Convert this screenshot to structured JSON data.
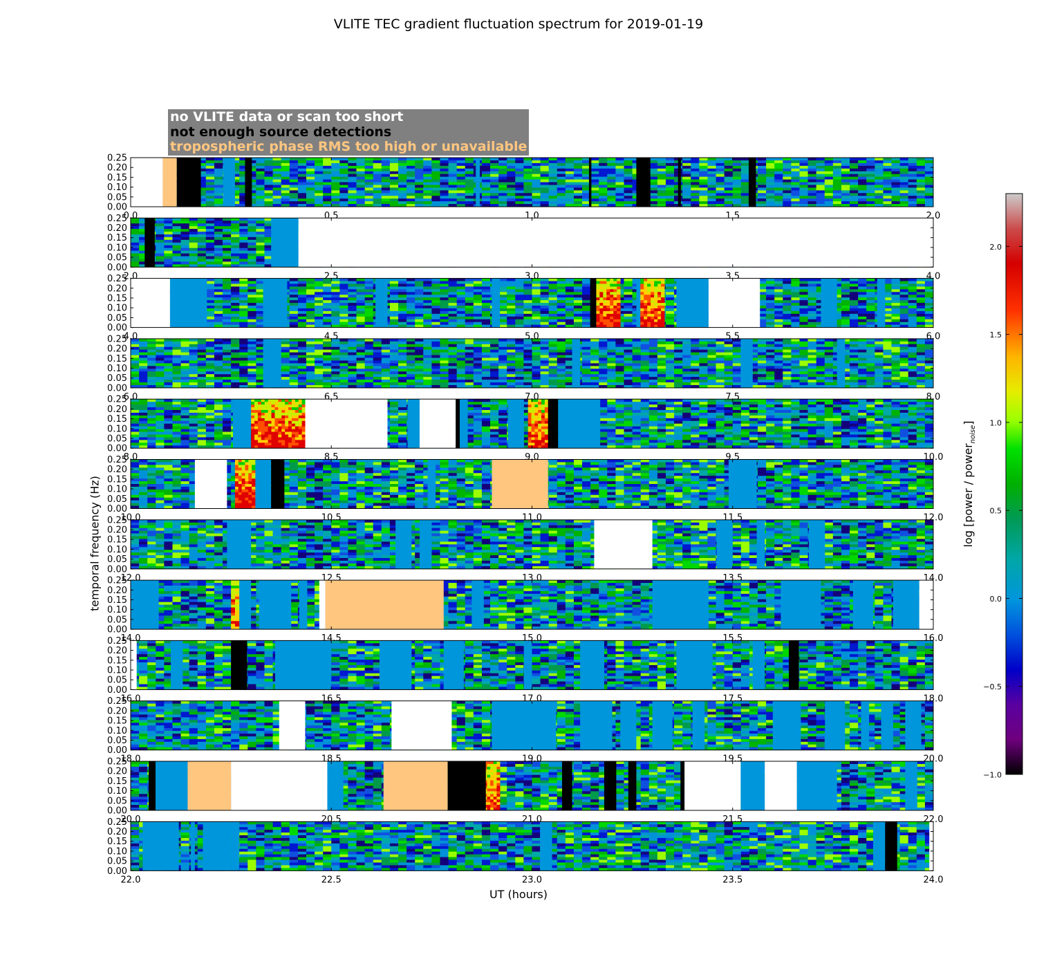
{
  "chart_data": {
    "type": "heatmap",
    "title": "VLITE TEC gradient fluctuation spectrum for 2019-01-19",
    "xlabel": "UT (hours)",
    "ylabel": "temporal frequency (Hz)",
    "colorbar": {
      "label": "log [power / power",
      "label_subscript": "noise",
      "label_close": "]",
      "range": [
        -1.0,
        2.3
      ],
      "ticks": [
        "−1.0",
        "−0.5",
        "0.0",
        "0.5",
        "1.0",
        "1.5",
        "2.0"
      ],
      "tick_values": [
        -1.0,
        -0.5,
        0.0,
        0.5,
        1.0,
        1.5,
        2.0
      ],
      "colormap": "nipy_spectral"
    },
    "flag_legend": [
      {
        "label": "no VLITE data or scan too short",
        "color": "#ffffff"
      },
      {
        "label": "not enough source detections",
        "color": "#000000"
      },
      {
        "label": "tropospheric phase RMS too high or unavailable",
        "color": "#ffc680"
      }
    ],
    "y_range": [
      0.0,
      0.25
    ],
    "y_ticks": [
      "0.00",
      "0.05",
      "0.10",
      "0.15",
      "0.20",
      "0.25"
    ],
    "panels": [
      {
        "x_range": [
          0.0,
          2.0
        ],
        "x_ticks": [
          "0.0",
          "0.5",
          "1.0",
          "1.5",
          "2.0"
        ],
        "white": [
          [
            0.0,
            0.08
          ]
        ],
        "black": [
          [
            0.115,
            0.175
          ],
          [
            0.285,
            0.302
          ],
          [
            1.142,
            1.148
          ],
          [
            1.26,
            1.295
          ],
          [
            1.364,
            1.371
          ],
          [
            1.54,
            1.558
          ]
        ],
        "peach": [
          [
            0.08,
            0.115
          ]
        ],
        "flat": [
          [
            0.23,
            0.26
          ],
          [
            0.86,
            0.87
          ]
        ],
        "hot": []
      },
      {
        "x_range": [
          2.0,
          4.0
        ],
        "x_ticks": [
          "2.0",
          "2.5",
          "3.0",
          "3.5",
          "4.0"
        ],
        "white": [
          [
            2.418,
            4.0
          ]
        ],
        "black": [
          [
            2.035,
            2.06
          ]
        ],
        "peach": [],
        "flat": [
          [
            2.35,
            2.418
          ]
        ],
        "hot": []
      },
      {
        "x_range": [
          4.0,
          6.0
        ],
        "x_ticks": [
          "4.0",
          "4.5",
          "5.0",
          "5.5",
          "6.0"
        ],
        "white": [
          [
            4.0,
            4.098
          ],
          [
            5.44,
            5.568
          ]
        ],
        "black": [
          [
            5.145,
            5.16
          ]
        ],
        "peach": [],
        "flat": [
          [
            4.098,
            4.19
          ],
          [
            4.33,
            4.39
          ],
          [
            4.61,
            4.64
          ],
          [
            4.9,
            4.92
          ],
          [
            5.26,
            5.3
          ],
          [
            5.36,
            5.44
          ],
          [
            5.72,
            5.76
          ],
          [
            5.86,
            5.88
          ]
        ],
        "hot": [
          [
            5.16,
            5.22,
            1.0
          ],
          [
            5.27,
            5.33,
            0.9
          ]
        ]
      },
      {
        "x_range": [
          6.0,
          8.0
        ],
        "x_ticks": [
          "6.0",
          "6.5",
          "7.0",
          "7.5",
          "8.0"
        ],
        "white": [],
        "black": [],
        "peach": [],
        "flat": [
          [
            6.33,
            6.375
          ],
          [
            7.1,
            7.12
          ],
          [
            7.52,
            7.55
          ],
          [
            7.76,
            7.78
          ]
        ],
        "hot": []
      },
      {
        "x_range": [
          8.0,
          10.0
        ],
        "x_ticks": [
          "8.0",
          "8.5",
          "9.0",
          "9.5",
          "10.0"
        ],
        "white": [
          [
            8.435,
            8.64
          ],
          [
            8.72,
            8.81
          ]
        ],
        "black": [
          [
            8.81,
            8.82
          ],
          [
            9.04,
            9.065
          ]
        ],
        "peach": [],
        "flat": [
          [
            8.255,
            8.3
          ],
          [
            8.69,
            8.72
          ],
          [
            8.82,
            8.84
          ],
          [
            8.94,
            8.98
          ],
          [
            9.065,
            9.17
          ]
        ],
        "hot": [
          [
            8.3,
            8.435,
            0.95
          ],
          [
            8.99,
            9.04,
            0.75
          ]
        ]
      },
      {
        "x_range": [
          10.0,
          12.0
        ],
        "x_ticks": [
          "10.0",
          "10.5",
          "11.0",
          "11.5",
          "12.0"
        ],
        "white": [
          [
            10.16,
            10.24
          ]
        ],
        "black": [
          [
            10.35,
            10.383
          ]
        ],
        "peach": [
          [
            10.9,
            11.04
          ]
        ],
        "flat": [
          [
            10.31,
            10.35
          ],
          [
            10.74,
            10.76
          ],
          [
            11.49,
            11.56
          ]
        ],
        "hot": [
          [
            10.26,
            10.31,
            1.15
          ]
        ]
      },
      {
        "x_range": [
          12.0,
          14.0
        ],
        "x_ticks": [
          "12.0",
          "12.5",
          "13.0",
          "13.5",
          "14.0"
        ],
        "white": [
          [
            13.155,
            13.3
          ]
        ],
        "black": [],
        "peach": [],
        "flat": [
          [
            12.24,
            12.3
          ],
          [
            12.66,
            12.7
          ],
          [
            12.72,
            12.75
          ],
          [
            13.46,
            13.5
          ],
          [
            13.56,
            13.58
          ],
          [
            13.69,
            13.73
          ]
        ],
        "hot": []
      },
      {
        "x_range": [
          14.0,
          16.0
        ],
        "x_ticks": [
          "14.0",
          "14.5",
          "15.0",
          "15.5",
          "16.0"
        ],
        "white": [
          [
            14.47,
            14.485
          ],
          [
            15.965,
            16.0
          ]
        ],
        "black": [],
        "peach": [
          [
            14.485,
            14.78
          ]
        ],
        "flat": [
          [
            14.0,
            14.07
          ],
          [
            14.27,
            14.3
          ],
          [
            14.32,
            14.4
          ],
          [
            14.42,
            14.44
          ],
          [
            14.85,
            14.88
          ],
          [
            15.3,
            15.44
          ],
          [
            15.62,
            15.72
          ],
          [
            15.8,
            15.85
          ],
          [
            15.9,
            15.965
          ]
        ],
        "hot": [
          [
            14.25,
            14.27,
            0.65
          ]
        ]
      },
      {
        "x_range": [
          16.0,
          18.0
        ],
        "x_ticks": [
          "16.0",
          "16.5",
          "17.0",
          "17.5",
          "18.0"
        ],
        "white": [
          [
            16.0,
            16.015
          ]
        ],
        "black": [
          [
            16.25,
            16.29
          ],
          [
            17.64,
            17.665
          ]
        ],
        "peach": [],
        "flat": [
          [
            16.1,
            16.13
          ],
          [
            16.36,
            16.5
          ],
          [
            16.62,
            16.7
          ],
          [
            16.78,
            16.83
          ],
          [
            16.98,
            17.0
          ],
          [
            17.12,
            17.18
          ],
          [
            17.36,
            17.45
          ],
          [
            17.55,
            17.58
          ]
        ],
        "hot": []
      },
      {
        "x_range": [
          18.0,
          20.0
        ],
        "x_ticks": [
          "18.0",
          "18.5",
          "19.0",
          "19.5",
          "20.0"
        ],
        "white": [
          [
            18.37,
            18.435
          ],
          [
            18.65,
            18.8
          ]
        ],
        "black": [],
        "peach": [],
        "flat": [
          [
            18.9,
            19.06
          ],
          [
            19.12,
            19.2
          ],
          [
            19.22,
            19.26
          ],
          [
            19.3,
            19.35
          ],
          [
            19.4,
            19.43
          ],
          [
            19.6,
            19.67
          ],
          [
            19.73,
            19.78
          ],
          [
            19.82,
            19.84
          ],
          [
            19.87,
            19.9
          ],
          [
            19.93,
            19.97
          ]
        ],
        "hot": []
      },
      {
        "x_range": [
          20.0,
          22.0
        ],
        "x_ticks": [
          "20.0",
          "20.5",
          "21.0",
          "21.5",
          "22.0"
        ],
        "white": [
          [
            20.25,
            20.49
          ],
          [
            21.38,
            21.52
          ],
          [
            21.58,
            21.66
          ]
        ],
        "black": [
          [
            20.045,
            20.062
          ],
          [
            20.79,
            20.885
          ],
          [
            21.075,
            21.1
          ],
          [
            21.18,
            21.21
          ],
          [
            21.24,
            21.26
          ],
          [
            21.37,
            21.38
          ]
        ],
        "peach": [
          [
            20.142,
            20.25
          ],
          [
            20.63,
            20.79
          ]
        ],
        "flat": [
          [
            20.062,
            20.142
          ],
          [
            20.49,
            20.53
          ],
          [
            21.52,
            21.58
          ],
          [
            21.66,
            21.76
          ],
          [
            21.93,
            21.96
          ]
        ],
        "hot": [
          [
            20.88,
            20.92,
            0.7
          ]
        ]
      },
      {
        "x_range": [
          22.0,
          24.0
        ],
        "x_ticks": [
          "22.0",
          "22.5",
          "23.0",
          "23.5",
          "24.0"
        ],
        "white": [
          [
            23.99,
            24.0
          ]
        ],
        "black": [
          [
            23.88,
            23.91
          ]
        ],
        "peach": [],
        "flat": [
          [
            22.03,
            22.12
          ],
          [
            22.22,
            22.24
          ],
          [
            22.26,
            22.26
          ],
          [
            22.18,
            22.19
          ],
          [
            22.24,
            22.25
          ],
          [
            22.27,
            22.24
          ],
          [
            22.15,
            22.16
          ],
          [
            22.25,
            22.27
          ],
          [
            22.18,
            22.24
          ],
          [
            22.22,
            22.24
          ],
          [
            23.02,
            23.05
          ],
          [
            23.85,
            23.88
          ]
        ],
        "hot": []
      }
    ]
  }
}
